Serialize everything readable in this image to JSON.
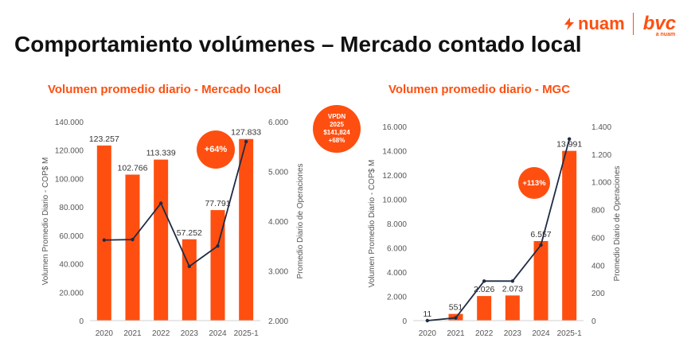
{
  "header": {
    "title": "Comportamiento volúmenes – Mercado contado local",
    "logo_left": "nuam",
    "logo_right": "bvc",
    "logo_right_sub": "a nuam"
  },
  "colors": {
    "bar": "#fe4f10",
    "line": "#1f2a44",
    "accent": "#fe4f10"
  },
  "callouts": {
    "chart1_badge": "+64%",
    "vpdn_line1": "VPDN",
    "vpdn_line2": "2025",
    "vpdn_line3": "$141,824",
    "vpdn_line4": "+68%",
    "chart2_badge": "+113%"
  },
  "chart_data": [
    {
      "type": "bar",
      "title": "Volumen promedio diario - Mercado local",
      "categories": [
        "2020",
        "2021",
        "2022",
        "2023",
        "2024",
        "2025-1"
      ],
      "series": [
        {
          "name": "Volumen Promedio Diario - COP$ M",
          "type": "bar",
          "axis": "left",
          "values": [
            123257,
            102766,
            113339,
            57252,
            77791,
            127833
          ],
          "labels": [
            "123.257",
            "102.766",
            "113.339",
            "57.252",
            "77.791",
            "127.833"
          ]
        },
        {
          "name": "Promedio Diario de Operaciones",
          "type": "line",
          "axis": "right",
          "values": [
            3620,
            3630,
            4360,
            3090,
            3500,
            5600
          ]
        }
      ],
      "ylabel": "Volumen Promedio Diario - COP$ M",
      "y2label": "Promedio Diario de Operaciones",
      "ylim": [
        0,
        140000
      ],
      "y2lim": [
        2000,
        6000
      ],
      "yticks": [
        0,
        20000,
        40000,
        60000,
        80000,
        100000,
        120000,
        140000
      ],
      "ytick_labels": [
        "0",
        "20.000",
        "40.000",
        "60.000",
        "80.000",
        "100.000",
        "120.000",
        "140.000"
      ],
      "y2ticks": [
        2000,
        3000,
        4000,
        5000,
        6000
      ],
      "y2tick_labels": [
        "2.000",
        "3.000",
        "4.000",
        "5.000",
        "6.000"
      ]
    },
    {
      "type": "bar",
      "title": "Volumen promedio diario - MGC",
      "categories": [
        "2020",
        "2021",
        "2022",
        "2023",
        "2024",
        "2025-1"
      ],
      "series": [
        {
          "name": "Volumen Promedio Diario - COP$ M",
          "type": "bar",
          "axis": "left",
          "values": [
            11,
            551,
            2026,
            2073,
            6557,
            13991
          ],
          "labels": [
            "11",
            "551",
            "2.026",
            "2.073",
            "6.557",
            "13.991"
          ]
        },
        {
          "name": "Promedio Diario de Operaciones",
          "type": "line",
          "axis": "right",
          "values": [
            0,
            20,
            285,
            285,
            545,
            1310
          ]
        }
      ],
      "ylabel": "Volumen Promedio Diario - COP$ M",
      "y2label": "Promedio Diario de Operaciones",
      "ylim": [
        0,
        16000
      ],
      "y2lim": [
        0,
        1400
      ],
      "yticks": [
        0,
        2000,
        4000,
        6000,
        8000,
        10000,
        12000,
        14000,
        16000
      ],
      "ytick_labels": [
        "0",
        "2.000",
        "4.000",
        "6.000",
        "8.000",
        "10.000",
        "12.000",
        "14.000",
        "16.000"
      ],
      "y2ticks": [
        0,
        200,
        400,
        600,
        800,
        1000,
        1200,
        1400
      ],
      "y2tick_labels": [
        "0",
        "200",
        "400",
        "600",
        "800",
        "1.000",
        "1.200",
        "1.400"
      ]
    }
  ]
}
